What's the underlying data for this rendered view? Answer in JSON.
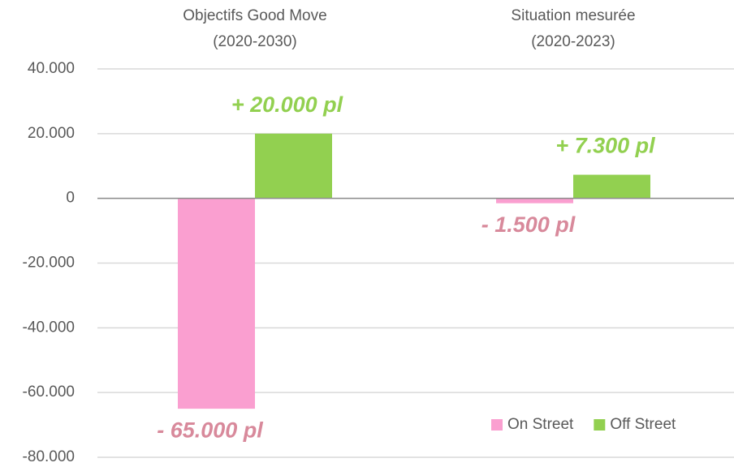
{
  "chart_data": {
    "type": "bar",
    "categories": [
      "Objectifs Good Move\n(2020-2030)",
      "Situation mesurée\n(2020-2023)"
    ],
    "series": [
      {
        "name": "On Street",
        "color": "#fa9fd0",
        "label_color": "#d8899b",
        "values": [
          -65000,
          -1500
        ],
        "value_labels": [
          "- 65.000 pl",
          "- 1.500 pl"
        ]
      },
      {
        "name": "Off Street",
        "color": "#92d050",
        "label_color": "#92d050",
        "values": [
          20000,
          7300
        ],
        "value_labels": [
          "+ 20.000 pl",
          "+ 7.300 pl"
        ]
      }
    ],
    "ylim": [
      -80000,
      40000
    ],
    "yticks": [
      {
        "value": -80000,
        "label": "-80.000"
      },
      {
        "value": -60000,
        "label": "-60.000"
      },
      {
        "value": -40000,
        "label": "-40.000"
      },
      {
        "value": -20000,
        "label": "-20.000"
      },
      0,
      {
        "value": 20000,
        "label": "20.000"
      },
      {
        "value": 40000,
        "label": "40.000"
      }
    ],
    "grid": true,
    "legend": "lower right"
  }
}
